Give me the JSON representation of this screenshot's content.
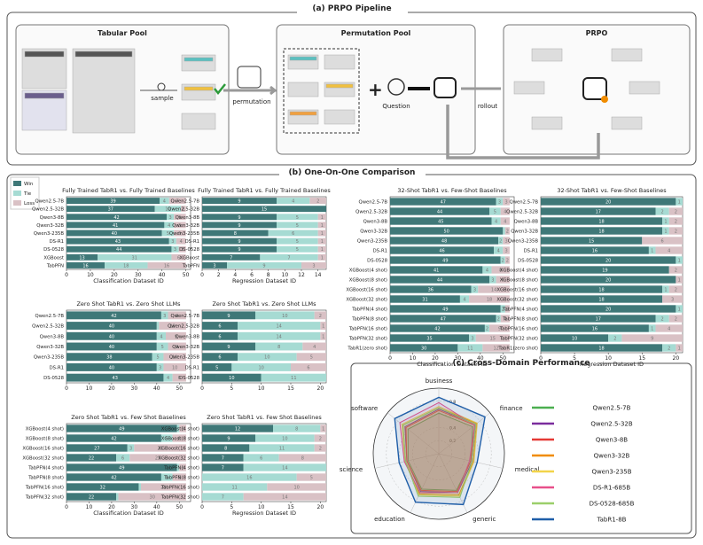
{
  "pipeline": {
    "title": "(a) PRPO Pipeline",
    "tabular_pool": "Tabular Pool",
    "sample": "sample",
    "permutation": "permutation",
    "permutation_pool": "Permutation Pool",
    "question": "Question",
    "rollout": "rollout",
    "prpo": "PRPO"
  },
  "section_b_title": "(b) One-On-One Comparison",
  "section_c_title": "(c) Cross-Domain Performance",
  "chart_data": [
    {
      "type": "bar",
      "orientation": "horizontal",
      "stacked": true,
      "title": "Fully Trained TabR1 vs. Fully Trained Baselines",
      "xlabel": "Classification Dataset ID",
      "categories": [
        "Qwen2.5-7B",
        "Qwen2.5-32B",
        "Qwen3-8B",
        "Qwen3-32B",
        "Qwen3-235B",
        "DS-R1",
        "DS-0528",
        "XGBoost",
        "TabPFN"
      ],
      "series": [
        {
          "name": "Win",
          "color": "#3f7878",
          "values": [
            39,
            37,
            42,
            41,
            40,
            43,
            44,
            13,
            16
          ]
        },
        {
          "name": "Tie",
          "color": "#a6dbd3",
          "values": [
            4,
            11,
            3,
            4,
            5,
            3,
            3,
            31,
            18
          ]
        },
        {
          "name": "Loss",
          "color": "#d9c1c5",
          "values": [
            7,
            2,
            5,
            5,
            5,
            4,
            3,
            6,
            16
          ]
        }
      ],
      "xlim": [
        0,
        52
      ],
      "xticks": [
        0,
        10,
        20,
        30,
        40,
        50
      ]
    },
    {
      "type": "bar",
      "orientation": "horizontal",
      "stacked": true,
      "title": "Fully Trained TabR1 vs. Fully Trained Baselines",
      "xlabel": "Regression Dataset ID",
      "categories": [
        "Qwen2.5-7B",
        "Qwen2.5-32B",
        "Qwen3-8B",
        "Qwen3-32B",
        "Qwen3-235B",
        "DS-R1",
        "DS-0528",
        "XGBoost",
        "TabPFN"
      ],
      "series": [
        {
          "name": "Win",
          "color": "#3f7878",
          "values": [
            9,
            15,
            9,
            9,
            8,
            9,
            9,
            7,
            3
          ]
        },
        {
          "name": "Tie",
          "color": "#a6dbd3",
          "values": [
            4,
            0,
            5,
            5,
            6,
            5,
            5,
            7,
            9
          ]
        },
        {
          "name": "Loss",
          "color": "#d9c1c5",
          "values": [
            2,
            0,
            1,
            1,
            1,
            1,
            1,
            1,
            3
          ]
        }
      ],
      "xlim": [
        0,
        15
      ],
      "xticks": [
        0,
        2,
        4,
        6,
        8,
        10,
        12,
        14
      ]
    },
    {
      "type": "bar",
      "orientation": "horizontal",
      "stacked": true,
      "title": "Zero Shot TabR1 vs. Zero Shot LLMs",
      "categories": [
        "Qwen2.5-7B",
        "Qwen2.5-32B",
        "Qwen3-8B",
        "Qwen3-32B",
        "Qwen3-235B",
        "DS-R1",
        "DS-0528"
      ],
      "series": [
        {
          "name": "Win",
          "color": "#3f7878",
          "values": [
            42,
            40,
            40,
            40,
            38,
            40,
            43
          ]
        },
        {
          "name": "Tie",
          "color": "#a6dbd3",
          "values": [
            3,
            1,
            4,
            5,
            5,
            3,
            4
          ]
        },
        {
          "name": "Loss",
          "color": "#d9c1c5",
          "values": [
            8,
            12,
            9,
            8,
            10,
            10,
            6
          ]
        }
      ],
      "xlim": [
        0,
        55
      ],
      "xticks": [
        0,
        10,
        20,
        30,
        40,
        50
      ]
    },
    {
      "type": "bar",
      "orientation": "horizontal",
      "stacked": true,
      "title": "Zero Shot TabR1 vs. Zero Shot LLMs",
      "categories": [
        "Qwen2.5-7B",
        "Qwen2.5-32B",
        "Qwen3-8B",
        "Qwen3-32B",
        "Qwen3-235B",
        "DS-R1",
        "DS-0528"
      ],
      "series": [
        {
          "name": "Win",
          "color": "#3f7878",
          "values": [
            9,
            6,
            6,
            9,
            6,
            5,
            10
          ]
        },
        {
          "name": "Tie",
          "color": "#a6dbd3",
          "values": [
            10,
            14,
            14,
            8,
            10,
            10,
            11
          ]
        },
        {
          "name": "Loss",
          "color": "#d9c1c5",
          "values": [
            2,
            1,
            1,
            4,
            5,
            6,
            0
          ]
        }
      ],
      "xlim": [
        0,
        21
      ],
      "xticks": [
        0,
        5,
        10,
        15,
        20
      ]
    },
    {
      "type": "bar",
      "orientation": "horizontal",
      "stacked": true,
      "title": "Zero Shot TabR1 vs. Few Shot Baselines",
      "xlabel": "Classification Dataset ID",
      "categories": [
        "XGBoost(4 shot)",
        "XGBoost(8 shot)",
        "XGBoost(16 shot)",
        "XGBoost(32 shot)",
        "TabPFN(4 shot)",
        "TabPFN(8 shot)",
        "TabPFN(16 shot)",
        "TabPFN(32 shot)"
      ],
      "series": [
        {
          "name": "Win",
          "color": "#3f7878",
          "values": [
            49,
            42,
            27,
            22,
            49,
            42,
            32,
            22
          ]
        },
        {
          "name": "Tie",
          "color": "#a6dbd3",
          "values": [
            1,
            5,
            3,
            6,
            1,
            5,
            1,
            1
          ]
        },
        {
          "name": "Loss",
          "color": "#d9c1c5",
          "values": [
            3,
            6,
            23,
            25,
            3,
            6,
            20,
            30
          ]
        }
      ],
      "xlim": [
        0,
        55
      ],
      "xticks": [
        0,
        10,
        20,
        30,
        40,
        50
      ]
    },
    {
      "type": "bar",
      "orientation": "horizontal",
      "stacked": true,
      "title": "Zero Shot TabR1 vs. Few Shot Baselines",
      "xlabel": "Regression Dataset ID",
      "categories": [
        "XGBoost(4 shot)",
        "XGBoost(8 shot)",
        "XGBoost(16 shot)",
        "XGBoost(32 shot)",
        "TabPFN(4 shot)",
        "TabPFN(8 shot)",
        "TabPFN(16 shot)",
        "TabPFN(32 shot)"
      ],
      "series": [
        {
          "name": "Win",
          "color": "#3f7878",
          "values": [
            12,
            9,
            8,
            7,
            7,
            0,
            0,
            0
          ]
        },
        {
          "name": "Tie",
          "color": "#a6dbd3",
          "values": [
            8,
            10,
            11,
            6,
            14,
            16,
            11,
            7
          ]
        },
        {
          "name": "Loss",
          "color": "#d9c1c5",
          "values": [
            1,
            2,
            2,
            8,
            0,
            5,
            10,
            14
          ]
        }
      ],
      "xlim": [
        0,
        21
      ],
      "xticks": [
        0,
        5,
        10,
        15,
        20
      ]
    },
    {
      "type": "bar",
      "orientation": "horizontal",
      "stacked": true,
      "title": "32-Shot TabR1 vs. Few-Shot Baselines",
      "xlabel": "Classification Dataset ID",
      "categories": [
        "Qwen2.5-7B",
        "Qwen2.5-32B",
        "Qwen3-8B",
        "Qwen3-32B",
        "Qwen3-235B",
        "DS-R1",
        "DS-0528",
        "XGBoost(4 shot)",
        "XGBoost(8 shot)",
        "XGBoost(16 shot)",
        "XGBoost(32 shot)",
        "TabPFN(4 shot)",
        "TabPFN(8 shot)",
        "TabPFN(16 shot)",
        "TabPFN(32 shot)",
        "TabR1(zero shot)"
      ],
      "series": [
        {
          "name": "Win",
          "color": "#3f7878",
          "values": [
            47,
            44,
            45,
            50,
            48,
            46,
            49,
            41,
            44,
            36,
            31,
            49,
            47,
            42,
            35,
            30
          ]
        },
        {
          "name": "Tie",
          "color": "#a6dbd3",
          "values": [
            3,
            5,
            4,
            1,
            2,
            4,
            2,
            4,
            3,
            3,
            4,
            2,
            2,
            2,
            3,
            11
          ]
        },
        {
          "name": "Loss",
          "color": "#d9c1c5",
          "values": [
            3,
            4,
            4,
            2,
            3,
            3,
            2,
            8,
            6,
            14,
            18,
            2,
            4,
            9,
            15,
            12
          ]
        }
      ],
      "xlim": [
        0,
        55
      ],
      "xticks": [
        0,
        10,
        20,
        30,
        40,
        50
      ]
    },
    {
      "type": "bar",
      "orientation": "horizontal",
      "stacked": true,
      "title": "32-Shot TabR1 vs. Few-Shot Baselines",
      "xlabel": "Regression Dataset ID",
      "categories": [
        "Qwen2.5-7B",
        "Qwen2.5-32B",
        "Qwen3-8B",
        "Qwen3-32B",
        "Qwen3-235B",
        "DS-R1",
        "DS-0528",
        "XGBoost(4 shot)",
        "XGBoost(8 shot)",
        "XGBoost(16 shot)",
        "XGBoost(32 shot)",
        "TabPFN(4 shot)",
        "TabPFN(8 shot)",
        "TabPFN(16 shot)",
        "TabPFN(32 shot)",
        "TabR1(zero shot)"
      ],
      "series": [
        {
          "name": "Win",
          "color": "#3f7878",
          "values": [
            20,
            17,
            18,
            18,
            15,
            16,
            20,
            19,
            20,
            18,
            18,
            20,
            17,
            16,
            10,
            18
          ]
        },
        {
          "name": "Tie",
          "color": "#a6dbd3",
          "values": [
            1,
            2,
            1,
            1,
            0,
            1,
            1,
            0,
            0,
            1,
            0,
            1,
            2,
            1,
            2,
            2
          ]
        },
        {
          "name": "Loss",
          "color": "#d9c1c5",
          "values": [
            0,
            2,
            2,
            2,
            6,
            4,
            0,
            2,
            1,
            2,
            3,
            0,
            2,
            4,
            9,
            1
          ]
        }
      ],
      "xlim": [
        0,
        21
      ],
      "xticks": [
        0,
        5,
        10,
        15,
        20
      ]
    },
    {
      "type": "radar",
      "axes": [
        "business",
        "finance",
        "medical",
        "generic",
        "education",
        "science",
        "software"
      ],
      "rlim": [
        0,
        1
      ],
      "rticks": [
        0.2,
        0.4,
        0.6,
        0.8
      ],
      "series": [
        {
          "name": "Qwen2.5-7B",
          "color": "#4caf50",
          "values": [
            0.62,
            0.66,
            0.5,
            0.62,
            0.6,
            0.48,
            0.6
          ]
        },
        {
          "name": "Qwen2.5-32B",
          "color": "#7b2d9e",
          "values": [
            0.68,
            0.72,
            0.52,
            0.66,
            0.64,
            0.5,
            0.66
          ]
        },
        {
          "name": "Qwen3-8B",
          "color": "#e53935",
          "values": [
            0.66,
            0.7,
            0.5,
            0.64,
            0.62,
            0.5,
            0.64
          ]
        },
        {
          "name": "Qwen3-32B",
          "color": "#f08c00",
          "values": [
            0.7,
            0.74,
            0.54,
            0.7,
            0.68,
            0.52,
            0.7
          ]
        },
        {
          "name": "Qwen3-235B",
          "color": "#f2d44a",
          "values": [
            0.72,
            0.75,
            0.55,
            0.72,
            0.7,
            0.53,
            0.72
          ]
        },
        {
          "name": "DS-R1-685B",
          "color": "#e8508a",
          "values": [
            0.78,
            0.7,
            0.48,
            0.66,
            0.66,
            0.54,
            0.76
          ]
        },
        {
          "name": "DS-0528-685B",
          "color": "#9bcf6a",
          "values": [
            0.7,
            0.72,
            0.52,
            0.74,
            0.72,
            0.52,
            0.7
          ]
        },
        {
          "name": "TabR1-8B",
          "color": "#1f5ea8",
          "values": [
            0.86,
            0.9,
            0.6,
            0.86,
            0.82,
            0.62,
            0.86
          ]
        }
      ]
    }
  ]
}
